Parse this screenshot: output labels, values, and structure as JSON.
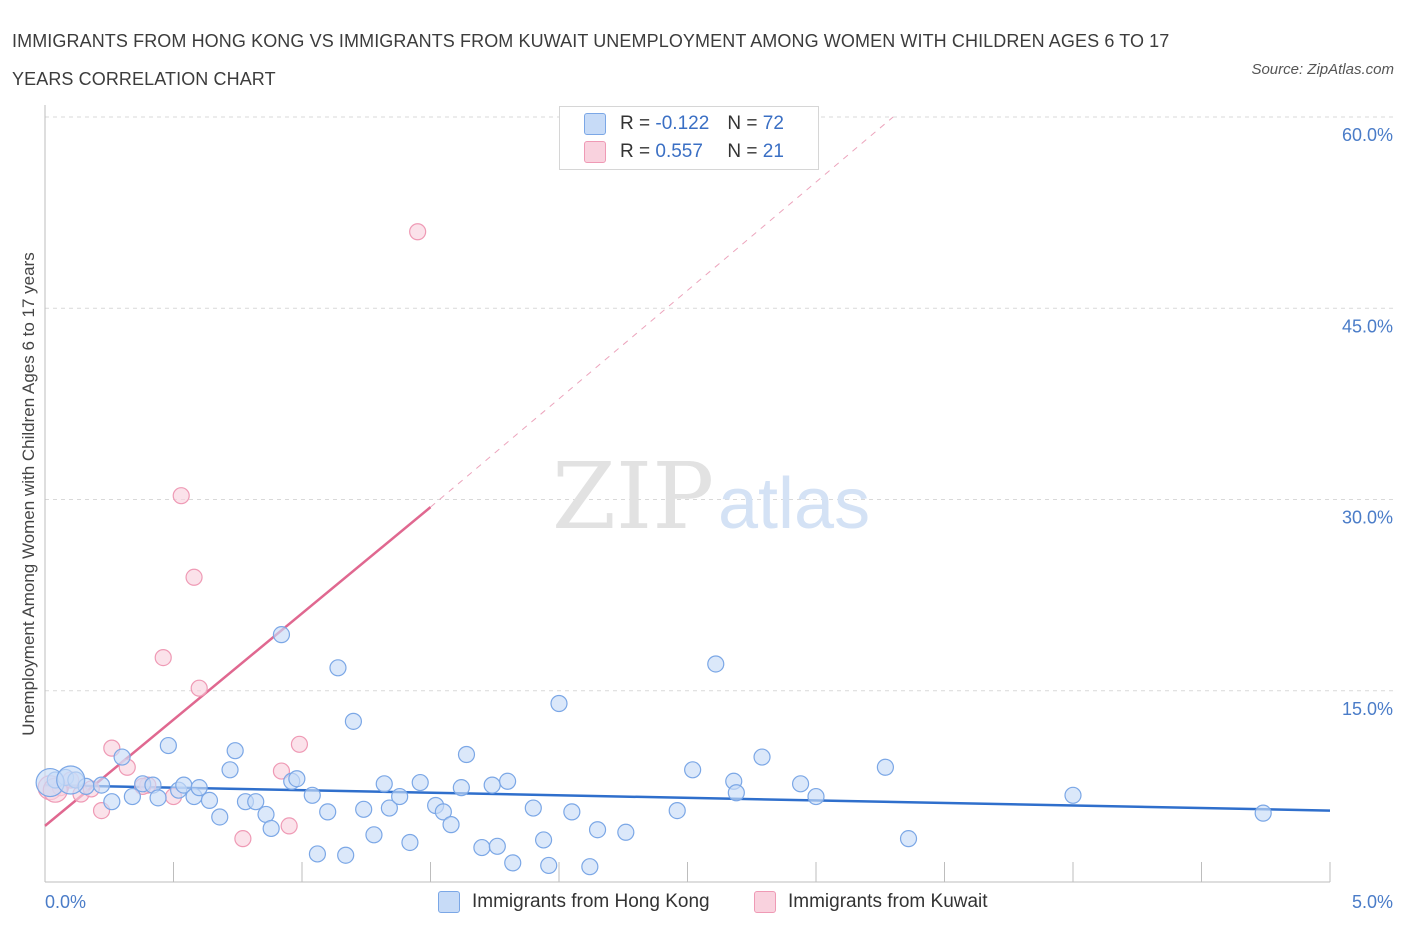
{
  "title": "IMMIGRANTS FROM HONG KONG VS IMMIGRANTS FROM KUWAIT UNEMPLOYMENT AMONG WOMEN WITH CHILDREN AGES 6 TO 17 YEARS CORRELATION CHART",
  "source": "Source: ZipAtlas.com",
  "watermark": {
    "zip": "ZIP",
    "atlas": "atlas"
  },
  "colors": {
    "blue": "#7ba7e6",
    "blue_fill": "#c7dbf7",
    "blue_line": "#2f6fcc",
    "pink": "#ef9ab5",
    "pink_fill": "#f9d2de",
    "pink_line": "#e06890",
    "tick_text": "#4a7cc8",
    "grid": "#d9d9d9"
  },
  "legend": {
    "rows": [
      {
        "r_label": "R =",
        "r_value": "-0.122",
        "n_label": "N =",
        "n_value": "72"
      },
      {
        "r_label": "R =",
        "r_value": "0.557",
        "n_label": "N =",
        "n_value": "21"
      }
    ]
  },
  "chart_data": {
    "type": "scatter",
    "title": "IMMIGRANTS FROM HONG KONG VS IMMIGRANTS FROM KUWAIT UNEMPLOYMENT AMONG WOMEN WITH CHILDREN AGES 6 TO 17 YEARS CORRELATION CHART",
    "xlabel": "",
    "ylabel": "Unemployment Among Women with Children Ages 6 to 17 years",
    "xlim": [
      0,
      5
    ],
    "ylim": [
      0,
      60
    ],
    "x_tick_labels": [
      "0.0%",
      "5.0%"
    ],
    "y_ticks": [
      15,
      30,
      45,
      60
    ],
    "y_tick_labels": [
      "15.0%",
      "30.0%",
      "45.0%",
      "60.0%"
    ],
    "grid": true,
    "legend_position": "top-center",
    "series": [
      {
        "name": "Immigrants from Hong Kong",
        "R": -0.122,
        "N": 72,
        "trend": {
          "x": [
            0.0,
            5.0
          ],
          "y": [
            7.6,
            5.6
          ]
        },
        "points": [
          [
            0.04,
            8.0
          ],
          [
            0.08,
            8.2
          ],
          [
            0.12,
            8.0
          ],
          [
            0.16,
            7.5
          ],
          [
            0.22,
            7.6
          ],
          [
            0.26,
            6.3
          ],
          [
            0.3,
            9.8
          ],
          [
            0.34,
            6.7
          ],
          [
            0.38,
            7.7
          ],
          [
            0.42,
            7.6
          ],
          [
            0.44,
            6.6
          ],
          [
            0.48,
            10.7
          ],
          [
            0.52,
            7.2
          ],
          [
            0.54,
            7.6
          ],
          [
            0.58,
            6.7
          ],
          [
            0.6,
            7.4
          ],
          [
            0.64,
            6.4
          ],
          [
            0.68,
            5.1
          ],
          [
            0.72,
            8.8
          ],
          [
            0.74,
            10.3
          ],
          [
            0.78,
            6.3
          ],
          [
            0.82,
            6.3
          ],
          [
            0.86,
            5.3
          ],
          [
            0.88,
            4.2
          ],
          [
            0.92,
            19.4
          ],
          [
            0.96,
            7.9
          ],
          [
            0.98,
            8.1
          ],
          [
            1.04,
            6.8
          ],
          [
            1.06,
            2.2
          ],
          [
            1.1,
            5.5
          ],
          [
            1.14,
            16.8
          ],
          [
            1.17,
            2.1
          ],
          [
            1.2,
            12.6
          ],
          [
            1.24,
            5.7
          ],
          [
            1.28,
            3.7
          ],
          [
            1.32,
            7.7
          ],
          [
            1.34,
            5.8
          ],
          [
            1.38,
            6.7
          ],
          [
            1.42,
            3.1
          ],
          [
            1.46,
            7.8
          ],
          [
            1.52,
            6.0
          ],
          [
            1.55,
            5.5
          ],
          [
            1.58,
            4.5
          ],
          [
            1.62,
            7.4
          ],
          [
            1.64,
            10.0
          ],
          [
            1.7,
            2.7
          ],
          [
            1.74,
            7.6
          ],
          [
            1.76,
            2.8
          ],
          [
            1.8,
            7.9
          ],
          [
            1.82,
            1.5
          ],
          [
            1.9,
            5.8
          ],
          [
            1.94,
            3.3
          ],
          [
            1.96,
            1.3
          ],
          [
            2.0,
            14.0
          ],
          [
            2.05,
            5.5
          ],
          [
            2.12,
            1.2
          ],
          [
            2.15,
            4.1
          ],
          [
            2.26,
            3.9
          ],
          [
            2.46,
            5.6
          ],
          [
            2.52,
            8.8
          ],
          [
            2.61,
            17.1
          ],
          [
            2.68,
            7.9
          ],
          [
            2.69,
            7.0
          ],
          [
            2.79,
            9.8
          ],
          [
            2.94,
            7.7
          ],
          [
            3.0,
            6.7
          ],
          [
            3.27,
            9.0
          ],
          [
            3.36,
            3.4
          ],
          [
            4.0,
            6.8
          ],
          [
            4.74,
            5.4
          ],
          [
            0.02,
            7.8
          ],
          [
            0.1,
            8.0
          ]
        ]
      },
      {
        "name": "Immigrants from Kuwait",
        "R": 0.557,
        "N": 21,
        "trend": {
          "x": [
            0.0,
            1.5
          ],
          "y": [
            4.4,
            29.4
          ]
        },
        "trend_extrapolated": {
          "x": [
            1.5,
            3.3
          ],
          "y": [
            29.4,
            60.0
          ]
        },
        "points": [
          [
            0.02,
            7.4
          ],
          [
            0.06,
            7.4
          ],
          [
            0.1,
            8.0
          ],
          [
            0.14,
            6.9
          ],
          [
            0.18,
            7.3
          ],
          [
            0.22,
            5.6
          ],
          [
            0.26,
            10.5
          ],
          [
            0.32,
            9.0
          ],
          [
            0.4,
            7.6
          ],
          [
            0.46,
            17.6
          ],
          [
            0.5,
            6.7
          ],
          [
            0.53,
            30.3
          ],
          [
            0.58,
            23.9
          ],
          [
            0.6,
            15.2
          ],
          [
            0.77,
            3.4
          ],
          [
            0.92,
            8.7
          ],
          [
            0.95,
            4.4
          ],
          [
            0.99,
            10.8
          ],
          [
            1.45,
            51.0
          ],
          [
            0.38,
            7.5
          ],
          [
            0.04,
            7.2
          ]
        ]
      }
    ]
  },
  "bottom_legend": [
    "Immigrants from Hong Kong",
    "Immigrants from Kuwait"
  ]
}
